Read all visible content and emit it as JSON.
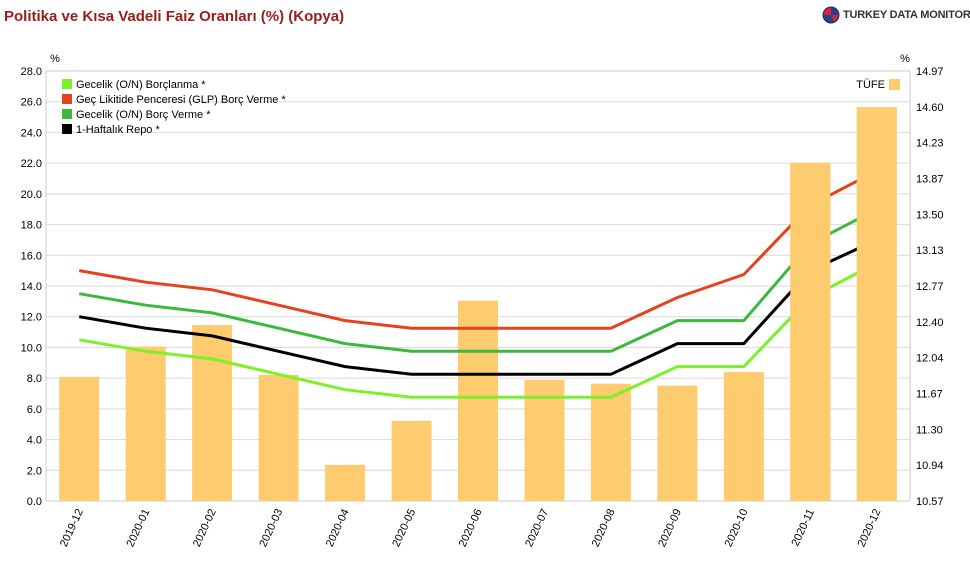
{
  "title": "Politika ve Kısa Vadeli Faiz Oranları (%) (Kopya)",
  "logo_text": "TURKEY DATA MONITOR",
  "chart_data": {
    "type": "bar+line",
    "title": "Politika ve Kısa Vadeli Faiz Oranları (%) (Kopya)",
    "categories": [
      "2019-12",
      "2020-01",
      "2020-02",
      "2020-03",
      "2020-04",
      "2020-05",
      "2020-06",
      "2020-07",
      "2020-08",
      "2020-09",
      "2020-10",
      "2020-11",
      "2020-12"
    ],
    "y_left": {
      "label": "%",
      "min": 0,
      "max": 28,
      "ticks": [
        "0.0",
        "2.0",
        "4.0",
        "6.0",
        "8.0",
        "10.0",
        "12.0",
        "14.0",
        "16.0",
        "18.0",
        "20.0",
        "22.0",
        "24.0",
        "26.0",
        "28.0"
      ]
    },
    "y_right": {
      "label": "%",
      "min": 10.57,
      "max": 14.97,
      "ticks": [
        "10.57",
        "10.94",
        "11.30",
        "11.67",
        "12.04",
        "12.40",
        "12.77",
        "13.13",
        "13.50",
        "13.87",
        "14.23",
        "14.60",
        "14.97"
      ]
    },
    "grid": true,
    "legend_left_position": "top-left",
    "legend_right_position": "top-right",
    "bar_series": {
      "name": "TÜFE",
      "axis": "right",
      "color": "#fecb6e",
      "values": [
        11.84,
        12.15,
        12.37,
        11.86,
        10.94,
        11.39,
        12.62,
        11.81,
        11.77,
        11.75,
        11.89,
        14.03,
        14.6
      ]
    },
    "line_series": [
      {
        "name": "Gecelik (O/N) Borçlanma *",
        "color": "#7cf02a",
        "values": [
          10.5,
          9.75,
          9.25,
          8.25,
          7.25,
          6.75,
          6.75,
          6.75,
          6.75,
          8.75,
          8.75,
          13.25,
          15.5
        ]
      },
      {
        "name": "Geç Likitide Penceresi (GLP) Borç Verme *",
        "color": "#e4431e",
        "values": [
          15.0,
          14.25,
          13.75,
          12.75,
          11.75,
          11.25,
          11.25,
          11.25,
          11.25,
          13.25,
          14.75,
          19.25,
          21.5
        ]
      },
      {
        "name": "Gecelik (O/N) Borç Verme *",
        "color": "#3cb93c",
        "values": [
          13.5,
          12.75,
          12.25,
          11.25,
          10.25,
          9.75,
          9.75,
          9.75,
          9.75,
          11.75,
          11.75,
          16.75,
          19.0
        ]
      },
      {
        "name": "1-Haftalık Repo *",
        "color": "#000000",
        "values": [
          12.0,
          11.25,
          10.75,
          9.75,
          8.75,
          8.25,
          8.25,
          8.25,
          8.25,
          10.25,
          10.25,
          15.0,
          17.0
        ]
      }
    ]
  }
}
